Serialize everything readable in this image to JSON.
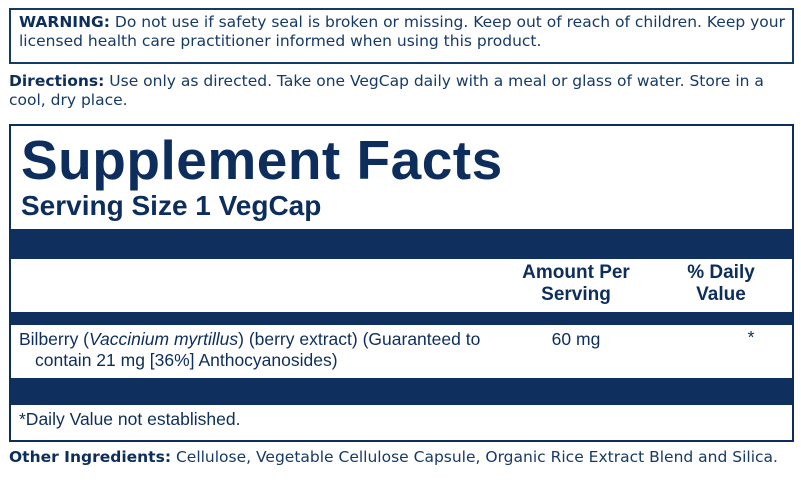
{
  "warning": {
    "label": "WARNING:",
    "text": " Do not use if safety seal is broken or missing. Keep out of reach of children. Keep your licensed health care practitioner informed when using this product."
  },
  "directions": {
    "label": "Directions:",
    "text": " Use only as directed. Take one VegCap daily with a meal or glass of water. Store in a cool, dry place."
  },
  "facts": {
    "title": "Supplement Facts",
    "serving_size": "Serving Size 1 VegCap",
    "headers": {
      "amount": "Amount Per Serving",
      "daily_value": "% Daily Value"
    },
    "ingredients": [
      {
        "name_pre": "Bilberry (",
        "name_latin": "Vaccinium myrtillus",
        "name_post": ") (berry extract) (Guaranteed to contain 21 mg [36%] Anthocyanosides)",
        "amount": "60 mg",
        "daily_value": "*"
      }
    ],
    "footnote": "*Daily Value not established."
  },
  "other": {
    "label": "Other Ingredients:",
    "text": " Cellulose, Vegetable Cellulose Capsule, Organic Rice Extract Blend and Silica."
  },
  "colors": {
    "navy": "#0f2f5e"
  }
}
